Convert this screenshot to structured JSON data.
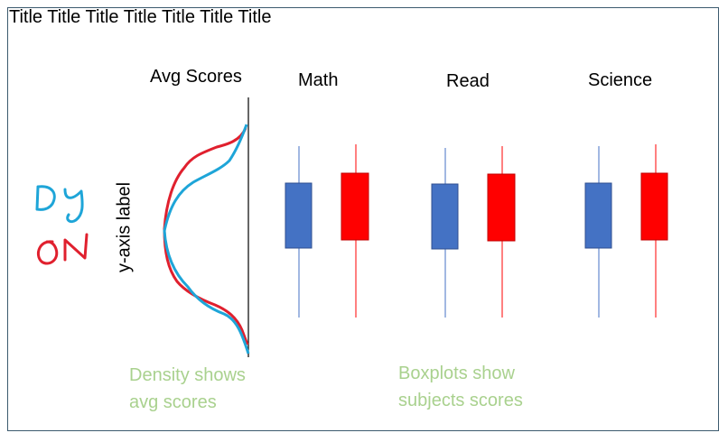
{
  "title": "Title Title Title Title Title Title Title",
  "headers": {
    "density": "Avg Scores",
    "math": "Math",
    "read": "Read",
    "science": "Science"
  },
  "y_axis_label": "y-axis label",
  "handwriting": {
    "dy": "DY",
    "on": "ON"
  },
  "notes": {
    "density_line1": "Density shows",
    "density_line2": "avg scores",
    "box_line1": "Boxplots show",
    "box_line2": "subjects scores"
  },
  "colors": {
    "blue_series": "#4472c4",
    "red_series": "#ff0000",
    "red_curve": "#e0202e",
    "blue_curve": "#1ea5d8",
    "note_green": "#a9d18e",
    "handwriting_blue": "#1ea5d8",
    "handwriting_red": "#e0202e",
    "frame_border": "#3c5a6e"
  }
}
